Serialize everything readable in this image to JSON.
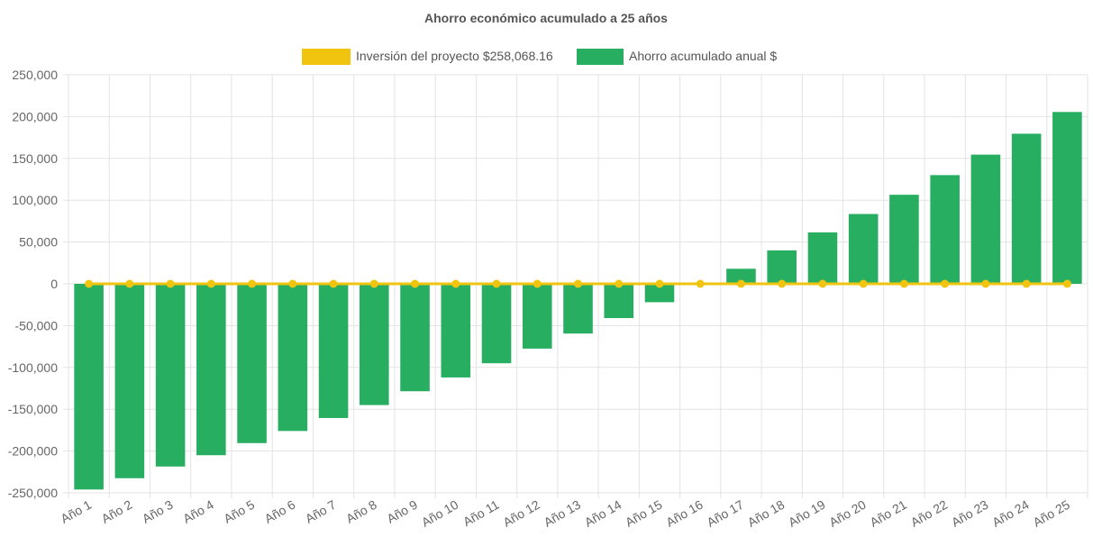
{
  "chart_data": {
    "type": "bar",
    "title": "Ahorro económico acumulado a 25 años",
    "categories": [
      "Año 1",
      "Año 2",
      "Año 3",
      "Año 4",
      "Año 5",
      "Año 6",
      "Año 7",
      "Año 8",
      "Año 9",
      "Año 10",
      "Año 11",
      "Año 12",
      "Año 13",
      "Año 14",
      "Año 15",
      "Año 16",
      "Año 17",
      "Año 18",
      "Año 19",
      "Año 20",
      "Año 21",
      "Año 22",
      "Año 23",
      "Año 24",
      "Año 25"
    ],
    "series": [
      {
        "name": "Inversión del proyecto $258,068.16",
        "kind": "line",
        "color": "#f1c40f",
        "values": [
          0,
          0,
          0,
          0,
          0,
          0,
          0,
          0,
          0,
          0,
          0,
          0,
          0,
          0,
          0,
          0,
          0,
          0,
          0,
          0,
          0,
          0,
          0,
          0,
          0
        ]
      },
      {
        "name": "Ahorro acumulado anual $",
        "kind": "bar",
        "color": "#27ae60",
        "values": [
          -246000,
          -232500,
          -218500,
          -205000,
          -190500,
          -176000,
          -160500,
          -145000,
          -128500,
          -112000,
          -95000,
          -77500,
          -59500,
          -41000,
          -22000,
          0,
          18000,
          40000,
          61500,
          83500,
          106500,
          130000,
          154500,
          179500,
          205500
        ]
      }
    ],
    "yticks": [
      250000,
      200000,
      150000,
      100000,
      50000,
      0,
      -50000,
      -100000,
      -150000,
      -200000,
      -250000
    ],
    "ytick_labels": [
      "250,000",
      "200,000",
      "150,000",
      "100,000",
      "50,000",
      "0",
      "-50,000",
      "-100,000",
      "-150,000",
      "-200,000",
      "-250,000"
    ],
    "ylim": [
      -250000,
      250000
    ],
    "xlabel": "",
    "ylabel": "",
    "legend_position": "top"
  }
}
